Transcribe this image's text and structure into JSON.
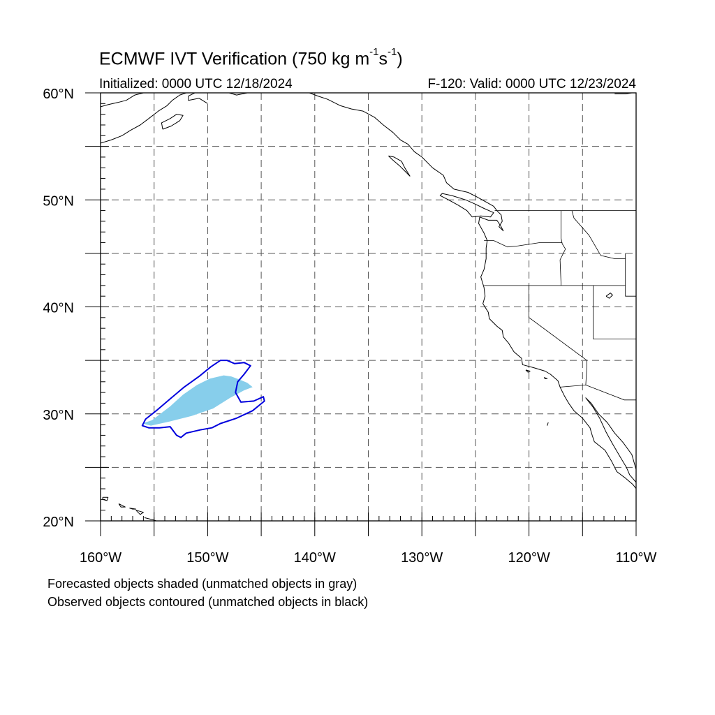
{
  "title": {
    "prefix": "ECMWF IVT Verification (750 kg m",
    "exp1": "-1",
    "middle": "s",
    "exp2": "-1",
    "suffix": ")"
  },
  "initialized": "Initialized: 0000 UTC 12/18/2024",
  "valid": "F-120: Valid: 0000 UTC 12/23/2024",
  "map": {
    "lon_range": [
      -160,
      -110
    ],
    "lat_range": [
      20,
      60
    ],
    "gridlines": "dashed",
    "lat_ticks": [
      {
        "lat": 60,
        "label": "60°N"
      },
      {
        "lat": 50,
        "label": "50°N"
      },
      {
        "lat": 40,
        "label": "40°N"
      },
      {
        "lat": 30,
        "label": "30°N"
      },
      {
        "lat": 20,
        "label": "20°N"
      }
    ],
    "lon_ticks": [
      {
        "lon": -160,
        "label": "160°W"
      },
      {
        "lon": -150,
        "label": "150°W"
      },
      {
        "lon": -140,
        "label": "140°W"
      },
      {
        "lon": -130,
        "label": "130°W"
      },
      {
        "lon": -120,
        "label": "120°W"
      },
      {
        "lon": -110,
        "label": "110°W"
      }
    ],
    "forecast_object": {
      "color": "#87ceeb",
      "polygon": [
        [
          -156.1,
          29.1
        ],
        [
          -155.2,
          29.4
        ],
        [
          -153.5,
          30.7
        ],
        [
          -152.3,
          31.8
        ],
        [
          -151.0,
          32.7
        ],
        [
          -149.8,
          33.3
        ],
        [
          -148.5,
          33.6
        ],
        [
          -147.8,
          33.5
        ],
        [
          -147.0,
          33.2
        ],
        [
          -146.3,
          32.9
        ],
        [
          -145.8,
          32.5
        ],
        [
          -146.6,
          32.2
        ],
        [
          -147.9,
          31.5
        ],
        [
          -149.5,
          30.5
        ],
        [
          -151.5,
          29.8
        ],
        [
          -153.5,
          29.3
        ],
        [
          -155.3,
          28.9
        ]
      ]
    },
    "observed_object": {
      "color": "#0000dd",
      "polygon": [
        [
          -155.5,
          28.7
        ],
        [
          -156.1,
          28.9
        ],
        [
          -155.8,
          29.5
        ],
        [
          -154.8,
          30.3
        ],
        [
          -153.5,
          31.4
        ],
        [
          -152.2,
          32.5
        ],
        [
          -150.8,
          33.5
        ],
        [
          -149.7,
          34.4
        ],
        [
          -148.8,
          35.0
        ],
        [
          -148.2,
          35.0
        ],
        [
          -147.5,
          34.7
        ],
        [
          -146.6,
          34.8
        ],
        [
          -146.0,
          34.5
        ],
        [
          -146.6,
          33.7
        ],
        [
          -147.2,
          33.0
        ],
        [
          -147.4,
          32.0
        ],
        [
          -146.9,
          31.1
        ],
        [
          -145.7,
          31.2
        ],
        [
          -144.8,
          31.6
        ],
        [
          -144.7,
          31.2
        ],
        [
          -145.8,
          30.3
        ],
        [
          -147.3,
          29.6
        ],
        [
          -148.8,
          29.1
        ],
        [
          -149.6,
          28.7
        ],
        [
          -150.7,
          28.5
        ],
        [
          -152.0,
          28.2
        ],
        [
          -152.5,
          27.8
        ],
        [
          -152.9,
          28.0
        ],
        [
          -153.5,
          28.8
        ],
        [
          -154.5,
          28.7
        ]
      ]
    },
    "coastlines": [
      [
        [
          -124.6,
          48.4
        ],
        [
          -124.7,
          47.8
        ],
        [
          -124.2,
          46.9
        ],
        [
          -123.9,
          46.2
        ],
        [
          -124.0,
          45.5
        ],
        [
          -124.0,
          44.5
        ],
        [
          -124.2,
          43.5
        ],
        [
          -124.5,
          42.8
        ],
        [
          -124.2,
          41.8
        ],
        [
          -124.1,
          41.0
        ],
        [
          -124.3,
          40.3
        ],
        [
          -123.8,
          39.5
        ],
        [
          -123.7,
          38.9
        ],
        [
          -123.0,
          38.2
        ],
        [
          -122.5,
          37.8
        ],
        [
          -122.4,
          37.2
        ],
        [
          -121.9,
          36.6
        ],
        [
          -121.4,
          35.8
        ],
        [
          -120.7,
          35.2
        ],
        [
          -120.6,
          34.6
        ],
        [
          -119.5,
          34.3
        ],
        [
          -118.5,
          34.0
        ],
        [
          -118.0,
          33.7
        ],
        [
          -117.3,
          33.1
        ],
        [
          -117.1,
          32.5
        ],
        [
          -116.7,
          31.7
        ],
        [
          -116.3,
          31.0
        ],
        [
          -115.8,
          30.3
        ],
        [
          -115.0,
          29.6
        ],
        [
          -114.3,
          28.7
        ],
        [
          -114.1,
          28.0
        ],
        [
          -113.9,
          27.4
        ],
        [
          -112.9,
          26.6
        ],
        [
          -112.3,
          25.6
        ],
        [
          -111.8,
          24.6
        ],
        [
          -111.0,
          24.0
        ],
        [
          -110.3,
          23.4
        ],
        [
          -109.9,
          22.9
        ],
        [
          -110.0,
          23.6
        ],
        [
          -110.6,
          24.3
        ],
        [
          -110.9,
          25.0
        ],
        [
          -111.5,
          26.0
        ],
        [
          -112.2,
          27.2
        ],
        [
          -112.8,
          28.3
        ],
        [
          -113.4,
          29.6
        ],
        [
          -114.0,
          30.6
        ],
        [
          -114.7,
          31.5
        ],
        [
          -114.2,
          31.0
        ],
        [
          -113.5,
          30.0
        ],
        [
          -112.7,
          29.2
        ],
        [
          -112.0,
          28.2
        ],
        [
          -111.2,
          27.3
        ],
        [
          -110.4,
          26.2
        ],
        [
          -110.0,
          24.8
        ]
      ],
      [
        [
          -124.6,
          48.4
        ],
        [
          -123.8,
          48.1
        ],
        [
          -123.0,
          48.1
        ],
        [
          -122.6,
          47.5
        ],
        [
          -122.4,
          47.1
        ],
        [
          -122.8,
          47.5
        ],
        [
          -122.5,
          48.0
        ],
        [
          -122.6,
          48.6
        ],
        [
          -123.0,
          49.0
        ]
      ],
      [
        [
          -123.0,
          49.0
        ],
        [
          -123.3,
          49.4
        ],
        [
          -124.0,
          49.8
        ],
        [
          -124.9,
          50.3
        ],
        [
          -125.7,
          50.7
        ],
        [
          -127.0,
          51.0
        ],
        [
          -127.7,
          51.6
        ],
        [
          -128.0,
          52.3
        ],
        [
          -129.0,
          53.0
        ],
        [
          -130.0,
          54.0
        ],
        [
          -130.7,
          54.5
        ],
        [
          -131.3,
          55.2
        ],
        [
          -132.0,
          55.6
        ],
        [
          -132.7,
          56.3
        ],
        [
          -133.6,
          57.0
        ],
        [
          -134.4,
          57.7
        ],
        [
          -135.5,
          58.3
        ],
        [
          -136.6,
          58.5
        ],
        [
          -137.6,
          58.8
        ],
        [
          -138.8,
          59.4
        ],
        [
          -139.7,
          59.7
        ],
        [
          -140.5,
          60.0
        ]
      ],
      [
        [
          -125.3,
          48.4
        ],
        [
          -124.5,
          48.5
        ],
        [
          -123.6,
          48.4
        ],
        [
          -123.3,
          48.8
        ],
        [
          -124.2,
          49.2
        ],
        [
          -125.0,
          49.6
        ],
        [
          -125.9,
          50.0
        ],
        [
          -127.2,
          50.4
        ],
        [
          -128.1,
          50.6
        ],
        [
          -128.3,
          50.4
        ],
        [
          -127.5,
          50.0
        ],
        [
          -126.6,
          49.5
        ],
        [
          -125.8,
          49.0
        ],
        [
          -125.3,
          48.4
        ]
      ],
      [
        [
          -131.1,
          52.2
        ],
        [
          -131.5,
          52.6
        ],
        [
          -132.1,
          53.2
        ],
        [
          -132.8,
          53.8
        ],
        [
          -133.1,
          54.1
        ],
        [
          -132.6,
          54.0
        ],
        [
          -131.9,
          53.6
        ],
        [
          -131.6,
          53.0
        ],
        [
          -131.1,
          52.2
        ]
      ],
      [
        [
          -160.0,
          55.3
        ],
        [
          -159.0,
          55.6
        ],
        [
          -158.0,
          56.0
        ],
        [
          -157.2,
          56.5
        ],
        [
          -156.3,
          57.0
        ],
        [
          -155.5,
          57.6
        ],
        [
          -154.6,
          58.3
        ],
        [
          -153.8,
          58.8
        ],
        [
          -153.3,
          59.3
        ],
        [
          -152.6,
          59.8
        ],
        [
          -152.0,
          60.0
        ]
      ],
      [
        [
          -160.0,
          58.7
        ],
        [
          -159.3,
          58.9
        ],
        [
          -158.4,
          59.1
        ],
        [
          -157.6,
          59.3
        ],
        [
          -156.8,
          59.8
        ],
        [
          -156.0,
          60.0
        ]
      ],
      [
        [
          -154.2,
          56.6
        ],
        [
          -153.4,
          56.9
        ],
        [
          -152.6,
          57.4
        ],
        [
          -152.3,
          57.9
        ],
        [
          -152.9,
          58.0
        ],
        [
          -153.5,
          57.6
        ],
        [
          -154.3,
          57.2
        ],
        [
          -154.2,
          56.6
        ]
      ],
      [
        [
          -150.0,
          59.0
        ],
        [
          -150.8,
          59.5
        ],
        [
          -151.8,
          59.3
        ],
        [
          -151.8,
          59.7
        ],
        [
          -151.2,
          60.0
        ]
      ],
      [
        [
          -148.0,
          60.0
        ],
        [
          -147.3,
          59.8
        ],
        [
          -146.3,
          60.0
        ]
      ],
      [
        [
          -159.8,
          22.2
        ],
        [
          -159.3,
          22.2
        ],
        [
          -159.4,
          21.9
        ],
        [
          -159.8,
          22.0
        ],
        [
          -159.8,
          22.2
        ]
      ],
      [
        [
          -158.3,
          21.6
        ],
        [
          -157.7,
          21.3
        ],
        [
          -158.1,
          21.3
        ],
        [
          -158.3,
          21.6
        ]
      ],
      [
        [
          -157.3,
          21.2
        ],
        [
          -156.7,
          21.1
        ],
        [
          -157.0,
          21.1
        ],
        [
          -157.3,
          21.2
        ]
      ],
      [
        [
          -156.7,
          21.0
        ],
        [
          -156.0,
          20.8
        ],
        [
          -156.3,
          20.6
        ],
        [
          -156.7,
          21.0
        ]
      ],
      [
        [
          -155.9,
          20.3
        ],
        [
          -155.1,
          20.1
        ],
        [
          -154.8,
          20.0
        ],
        [
          -155.0,
          20.0
        ]
      ],
      [
        [
          -110.4,
          60.0
        ],
        [
          -111.0,
          59.9
        ],
        [
          -112.0,
          59.9
        ]
      ],
      [
        [
          -120.3,
          34.1
        ],
        [
          -119.9,
          34.0
        ],
        [
          -120.1,
          33.9
        ],
        [
          -120.3,
          34.1
        ]
      ],
      [
        [
          -118.6,
          33.4
        ],
        [
          -118.3,
          33.3
        ],
        [
          -118.5,
          33.3
        ],
        [
          -118.6,
          33.4
        ]
      ],
      [
        [
          -118.2,
          29.2
        ],
        [
          -118.3,
          28.9
        ]
      ],
      [
        [
          -112.8,
          41.0
        ],
        [
          -112.4,
          41.3
        ],
        [
          -112.2,
          41.1
        ],
        [
          -112.5,
          40.8
        ],
        [
          -112.8,
          41.0
        ]
      ]
    ],
    "borders": [
      [
        [
          -123.2,
          49.0
        ],
        [
          -95.0,
          49.0
        ]
      ],
      [
        [
          -124.2,
          46.2
        ],
        [
          -123.3,
          46.2
        ],
        [
          -122.0,
          45.6
        ],
        [
          -121.0,
          45.7
        ],
        [
          -119.0,
          46.0
        ],
        [
          -116.9,
          46.0
        ]
      ],
      [
        [
          -117.0,
          49.0
        ],
        [
          -117.0,
          46.4
        ],
        [
          -116.9,
          45.9
        ],
        [
          -116.6,
          45.4
        ],
        [
          -117.1,
          44.4
        ],
        [
          -117.0,
          42.0
        ]
      ],
      [
        [
          -124.2,
          42.0
        ],
        [
          -111.0,
          42.0
        ]
      ],
      [
        [
          -120.0,
          42.0
        ],
        [
          -120.0,
          39.0
        ],
        [
          -114.6,
          35.0
        ]
      ],
      [
        [
          -116.0,
          49.0
        ],
        [
          -115.8,
          48.3
        ],
        [
          -114.4,
          46.7
        ],
        [
          -113.3,
          44.8
        ],
        [
          -112.0,
          44.5
        ],
        [
          -111.0,
          44.5
        ]
      ],
      [
        [
          -111.0,
          45.0
        ],
        [
          -111.0,
          41.0
        ],
        [
          -110.0,
          41.0
        ]
      ],
      [
        [
          -114.0,
          42.0
        ],
        [
          -114.0,
          37.0
        ],
        [
          -110.0,
          37.0
        ]
      ],
      [
        [
          -114.6,
          35.0
        ],
        [
          -114.6,
          34.4
        ],
        [
          -114.7,
          32.7
        ]
      ],
      [
        [
          -117.1,
          32.5
        ],
        [
          -114.7,
          32.7
        ],
        [
          -111.1,
          31.3
        ],
        [
          -110.0,
          31.3
        ]
      ]
    ]
  },
  "footer": {
    "line1": "Forecasted objects shaded (unmatched objects in gray)",
    "line2": "Observed objects contoured (unmatched objects in black)"
  }
}
